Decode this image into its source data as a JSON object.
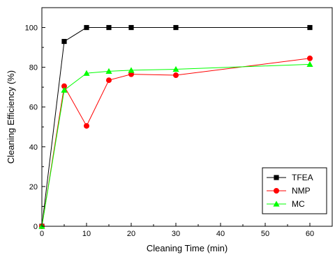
{
  "chart_data": {
    "type": "line",
    "xlabel": "Cleaning Time (min)",
    "ylabel": "Cleaning Efficiency (%)",
    "xlim": [
      0,
      65
    ],
    "ylim": [
      0,
      110
    ],
    "x_ticks": [
      0,
      10,
      20,
      30,
      40,
      50,
      60
    ],
    "y_ticks": [
      0,
      20,
      40,
      60,
      80,
      100
    ],
    "grid": false,
    "legend_position": "bottom-right",
    "series": [
      {
        "name": "TFEA",
        "color": "#000000",
        "marker": "square",
        "x": [
          0,
          5,
          10,
          15,
          20,
          30,
          60
        ],
        "y": [
          0,
          93,
          100,
          100,
          100,
          100,
          100
        ]
      },
      {
        "name": "NMP",
        "color": "#ff0000",
        "marker": "circle",
        "x": [
          0,
          5,
          10,
          15,
          20,
          30,
          60
        ],
        "y": [
          0,
          70.5,
          50.5,
          73.5,
          76.5,
          76,
          84.5
        ]
      },
      {
        "name": "MC",
        "color": "#00ff00",
        "marker": "triangle",
        "x": [
          0,
          5,
          10,
          15,
          20,
          30,
          60
        ],
        "y": [
          0,
          68.5,
          77,
          78,
          78.5,
          79,
          81.5
        ]
      }
    ]
  }
}
